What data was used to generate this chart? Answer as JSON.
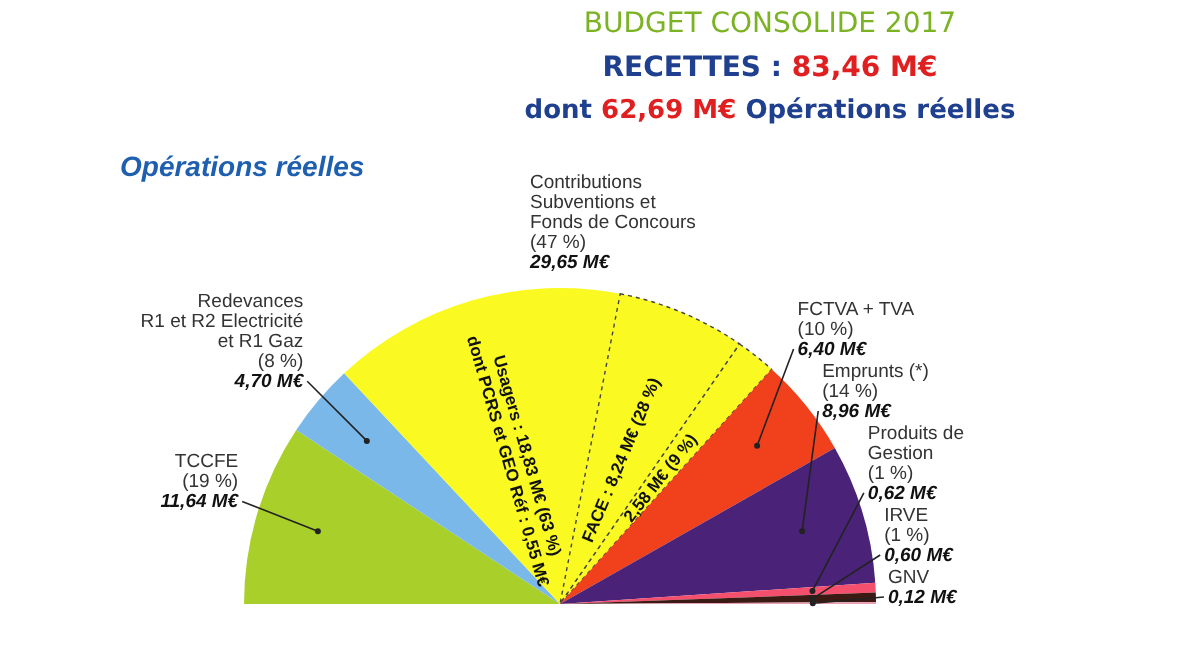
{
  "chart_data": {
    "type": "pie",
    "title": "BUDGET CONSOLIDE 2017",
    "subtitle": "RECETTES : 83,46 M€\ndont 62,69 M€ Opérations réelles",
    "categories": [
      "TCCFE\n(19 %)",
      "Redevances\nR1 et R2 Electricité\net R1 Gaz\n(8 %)",
      "Usagers : 18,83 M€ (63 %)\ndont PCRS et GEO Réf : 0,55 M€",
      "FACE : 8,24 M€ (28 %)",
      "2,58 M€ (9 %)",
      "FCTVA + TVA\n(10 %)",
      "Emprunts (*)\n(14 %)",
      "Produits de\nGestion\n(1 %)",
      "IRVE\n(1 %)",
      "GNV"
    ],
    "values": [
      11.64,
      4.7,
      18.83,
      8.24,
      2.58,
      6.4,
      8.96,
      0.62,
      0.6,
      0.12
    ],
    "value_labels": [
      "11,64 M€",
      "4,70 M€",
      null,
      null,
      null,
      "6,40 M€",
      "8,96 M€",
      "0,62 M€",
      "0,60 M€",
      "0,12 M€"
    ],
    "colors": [
      "#a8cf2a",
      "#7ab8ea",
      "#fafa22",
      "#fafa22",
      "#fafa22",
      "#f0401c",
      "#4a2277",
      "#f4506e",
      "#3a1a12",
      "#e8a0b0"
    ],
    "annotations": [
      "Opérations réelles",
      "Contributions\nSubventions et\nFonds de Concours\n(47 %)\n29,65 M€"
    ]
  }
}
